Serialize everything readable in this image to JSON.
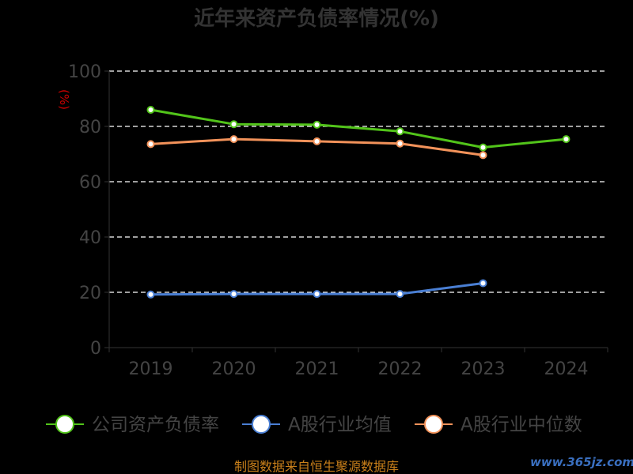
{
  "chart_data": {
    "type": "line",
    "title": "近年来资产负债率情况(%)",
    "ylabel": "(%)",
    "xlabel": "",
    "ylim": [
      0,
      100
    ],
    "yticks": [
      0,
      20,
      40,
      60,
      80,
      100
    ],
    "grid": true,
    "legend_position": "bottom",
    "categories": [
      "2019",
      "2020",
      "2021",
      "2022",
      "2023",
      "2024"
    ],
    "series": [
      {
        "name": "公司资产负债率",
        "color": "#52c41a",
        "values": [
          86,
          80.8,
          80.6,
          78.2,
          72.4,
          75.4
        ]
      },
      {
        "name": "A股行业均值",
        "color": "#4a7fd4",
        "values": [
          19.2,
          19.4,
          19.4,
          19.4,
          23.3,
          null
        ]
      },
      {
        "name": "A股行业中位数",
        "color": "#f2925a",
        "values": [
          73.6,
          75.4,
          74.6,
          73.8,
          69.6,
          null
        ]
      }
    ]
  },
  "footer": {
    "source": "制图数据来自恒生聚源数据库",
    "watermark": "www.365jz.com"
  }
}
